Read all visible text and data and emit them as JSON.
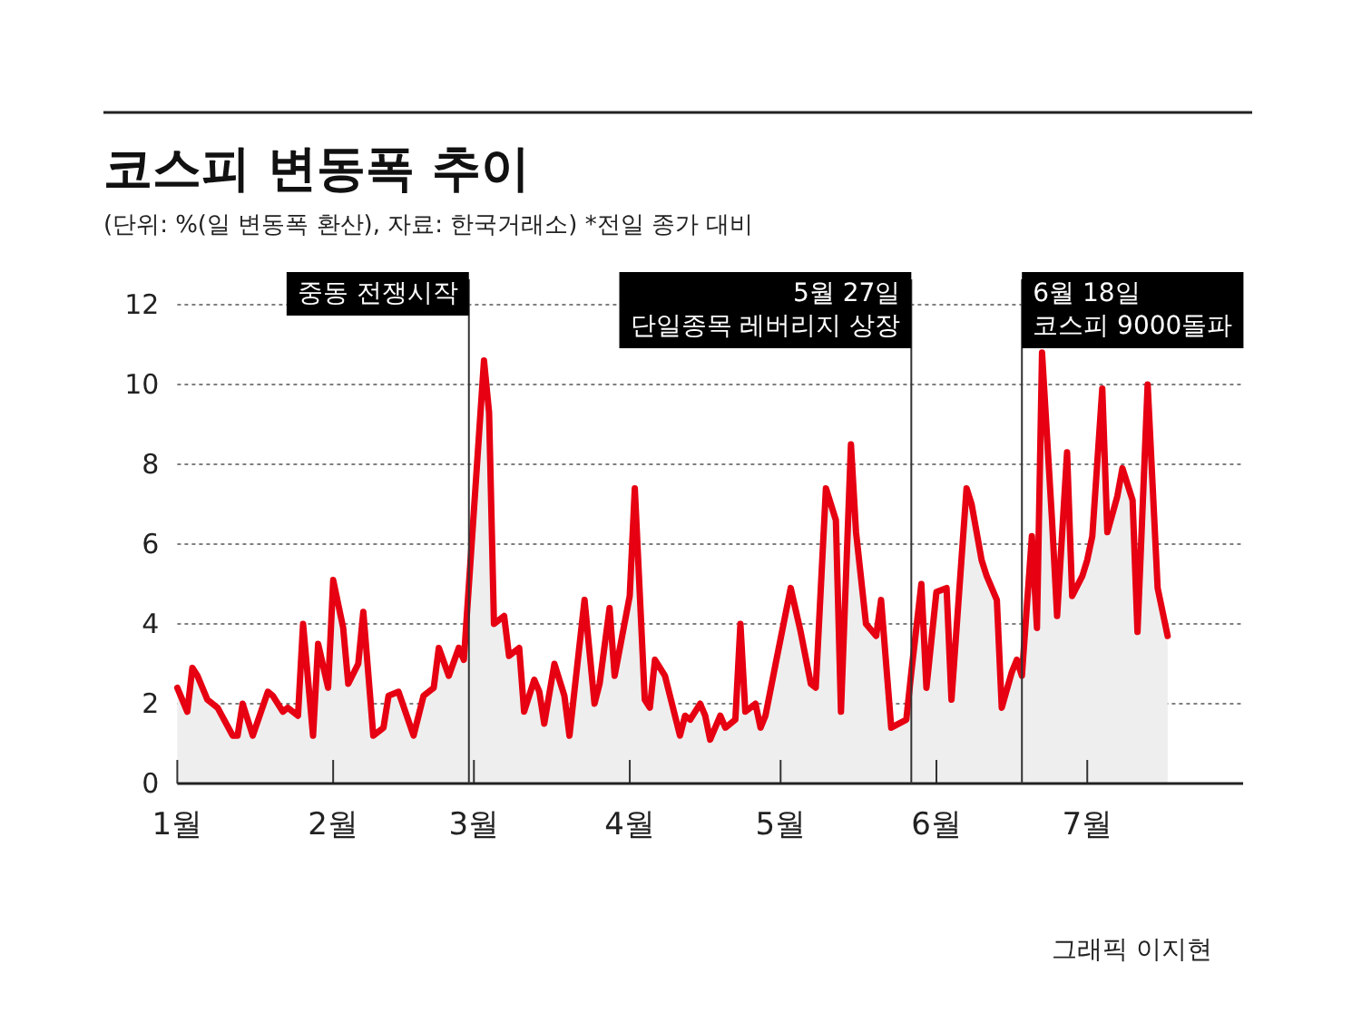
{
  "chart_data": {
    "type": "area",
    "title": "코스피 변동폭 추이",
    "subtitle": "(단위: %(일 변동폭 환산), 자료: 한국거래소)  *전일 종가 대비",
    "annotations": [
      "그래픽 이지현"
    ],
    "xlim": [
      "--01-01",
      "--08-01"
    ],
    "xticks": [
      {
        "value": "--01-01",
        "label": "1월"
      },
      {
        "value": "--02-01",
        "label": "2월"
      },
      {
        "value": "--03-01",
        "label": "3월"
      },
      {
        "value": "--04-01",
        "label": "4월"
      },
      {
        "value": "--05-01",
        "label": "5월"
      },
      {
        "value": "--06-01",
        "label": "6월"
      },
      {
        "value": "--07-01",
        "label": "7월"
      }
    ],
    "ylim": [
      0,
      12
    ],
    "yticks": [
      0,
      2,
      4,
      6,
      8,
      10,
      12
    ],
    "grid": "y",
    "ref_lines": [
      {
        "axis": "x",
        "value": "--02-28",
        "label": "중동 전쟁시작",
        "color": "#333333"
      },
      {
        "axis": "x",
        "value": "--05-27",
        "label": "5월 27일\n단일종목 레버리지 상장",
        "color": "#333333"
      },
      {
        "axis": "x",
        "value": "--06-18",
        "label": "6월 18일\n코스피 9000돌파",
        "color": "#333333"
      }
    ],
    "series": [
      {
        "color": "#e60012",
        "x": [
          "--01-01",
          "--01-03",
          "--01-04",
          "--01-05",
          "--01-07",
          "--01-09",
          "--01-12",
          "--01-13",
          "--01-14",
          "--01-16",
          "--01-19",
          "--01-20",
          "--01-22",
          "--01-23",
          "--01-25",
          "--01-26",
          "--01-28",
          "--01-29",
          "--01-31",
          "--02-01",
          "--02-03",
          "--02-04",
          "--02-06",
          "--02-07",
          "--02-09",
          "--02-11",
          "--02-12",
          "--02-14",
          "--02-17",
          "--02-19",
          "--02-21",
          "--02-22",
          "--02-24",
          "--02-26",
          "--02-27",
          "--03-03",
          "--03-04",
          "--03-05",
          "--03-07",
          "--03-08",
          "--03-10",
          "--03-11",
          "--03-13",
          "--03-14",
          "--03-15",
          "--03-17",
          "--03-19",
          "--03-20",
          "--03-23",
          "--03-25",
          "--03-26",
          "--03-28",
          "--03-29",
          "--04-01",
          "--04-02",
          "--04-04",
          "--04-05",
          "--04-06",
          "--04-08",
          "--04-11",
          "--04-12",
          "--04-13",
          "--04-15",
          "--04-16",
          "--04-17",
          "--04-19",
          "--04-20",
          "--04-22",
          "--04-23",
          "--04-24",
          "--04-26",
          "--04-27",
          "--04-28",
          "--04-30",
          "--05-03",
          "--05-05",
          "--05-07",
          "--05-08",
          "--05-10",
          "--05-12",
          "--05-13",
          "--05-15",
          "--05-16",
          "--05-18",
          "--05-20",
          "--05-21",
          "--05-23",
          "--05-26",
          "--05-27",
          "--05-29",
          "--05-30",
          "--06-01",
          "--06-03",
          "--06-04",
          "--06-07",
          "--06-08",
          "--06-10",
          "--06-11",
          "--06-13",
          "--06-14",
          "--06-16",
          "--06-17",
          "--06-18",
          "--06-20",
          "--06-21",
          "--06-22",
          "--06-24",
          "--06-25",
          "--06-27",
          "--06-28",
          "--06-30",
          "--07-01",
          "--07-02",
          "--07-04",
          "--07-05",
          "--07-07",
          "--07-08",
          "--07-10",
          "--07-11",
          "--07-13",
          "--07-14",
          "--07-15",
          "--07-17"
        ],
        "values": [
          2.4,
          1.8,
          2.9,
          2.7,
          2.1,
          1.9,
          1.2,
          1.2,
          2,
          1.2,
          2.3,
          2.2,
          1.8,
          1.9,
          1.7,
          4,
          1.2,
          3.5,
          2.4,
          5.1,
          3.9,
          2.5,
          3,
          4.3,
          1.2,
          1.4,
          2.2,
          2.3,
          1.2,
          2.2,
          2.4,
          3.4,
          2.7,
          3.4,
          3.1,
          10.6,
          9.3,
          4,
          4.2,
          3.2,
          3.4,
          1.8,
          2.6,
          2.3,
          1.5,
          3,
          2.2,
          1.2,
          4.6,
          2,
          2.5,
          4.4,
          2.7,
          4.7,
          7.4,
          2.1,
          1.9,
          3.1,
          2.7,
          1.2,
          1.7,
          1.6,
          2,
          1.7,
          1.1,
          1.7,
          1.4,
          1.6,
          4,
          1.8,
          2,
          1.4,
          1.7,
          3,
          4.9,
          3.8,
          2.5,
          2.4,
          7.4,
          6.6,
          1.8,
          8.5,
          6.3,
          4,
          3.7,
          4.6,
          1.4,
          1.6,
          2.8,
          5,
          2.4,
          4.8,
          4.9,
          2.1,
          7.4,
          7,
          5.6,
          5.2,
          4.6,
          1.9,
          2.8,
          3.1,
          2.7,
          6.2,
          3.9,
          10.8,
          6.6,
          4.2,
          8.3,
          4.7,
          5.2,
          5.6,
          6.2,
          9.9,
          6.3,
          7.2,
          7.9,
          7.1,
          3.8,
          10,
          7.5,
          4.9,
          3.7
        ]
      }
    ]
  }
}
